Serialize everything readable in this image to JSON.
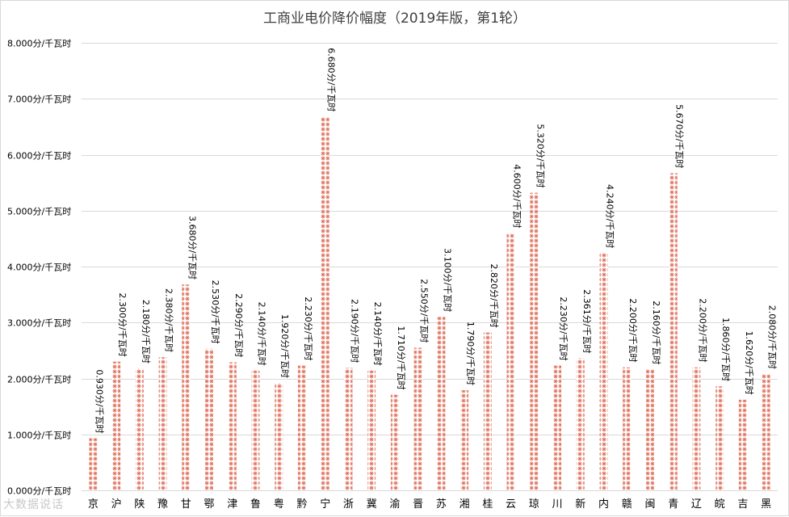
{
  "chart_data": {
    "type": "bar",
    "title": "工商业电价降价幅度（2019年版，第1轮）",
    "ylim": [
      0,
      8
    ],
    "y_ticks": [
      0,
      1,
      2,
      3,
      4,
      5,
      6,
      7,
      8
    ],
    "y_tick_labels": [
      "0.000分/千瓦时",
      "1.000分/千瓦时",
      "2.000分/千瓦时",
      "3.000分/千瓦时",
      "4.000分/千瓦时",
      "5.000分/千瓦时",
      "6.000分/千瓦时",
      "7.000分/千瓦时",
      "8.000分/千瓦时"
    ],
    "categories": [
      "京",
      "沪",
      "陕",
      "豫",
      "甘",
      "鄂",
      "津",
      "鲁",
      "粤",
      "黔",
      "宁",
      "浙",
      "冀",
      "渝",
      "晋",
      "苏",
      "湘",
      "桂",
      "云",
      "琼",
      "川",
      "新",
      "内",
      "赣",
      "闽",
      "青",
      "辽",
      "皖",
      "吉",
      "黑"
    ],
    "values": [
      0.93,
      2.3,
      2.18,
      2.38,
      3.68,
      2.53,
      2.29,
      2.14,
      1.92,
      2.23,
      6.68,
      2.19,
      2.14,
      1.71,
      2.55,
      3.1,
      1.79,
      2.82,
      4.6,
      5.32,
      2.23,
      2.361,
      4.24,
      2.2,
      2.16,
      5.67,
      2.2,
      1.86,
      1.62,
      2.08
    ],
    "data_labels": [
      "0.930分/千瓦时",
      "2.300分/千瓦时",
      "2.180分/千瓦时",
      "2.380分/千瓦时",
      "3.680分/千瓦时",
      "2.530分/千瓦时",
      "2.290分/千瓦时",
      "2.140分/千瓦时",
      "1.920分/千瓦时",
      "2.230分/千瓦时",
      "6.680分/千瓦时",
      "2.190分/千瓦时",
      "2.140分/千瓦时",
      "1.710分/千瓦时",
      "2.550分/千瓦时",
      "3.100分/千瓦时",
      "1.790分/千瓦时",
      "2.820分/千瓦时",
      "4.600分/千瓦时",
      "5.320分/千瓦时",
      "2.230分/千瓦时",
      "2.361分/千瓦时",
      "4.240分/千瓦时",
      "2.200分/千瓦时",
      "2.160分/千瓦时",
      "5.670分/千瓦时",
      "2.200分/千瓦时",
      "1.860分/千瓦时",
      "1.620分/千瓦时",
      "2.080分/千瓦时"
    ],
    "bar_color": "#f4b9ae",
    "bar_pattern_color": "#e0735f",
    "grid": true,
    "legend": "none"
  },
  "watermark": "大数据说话"
}
